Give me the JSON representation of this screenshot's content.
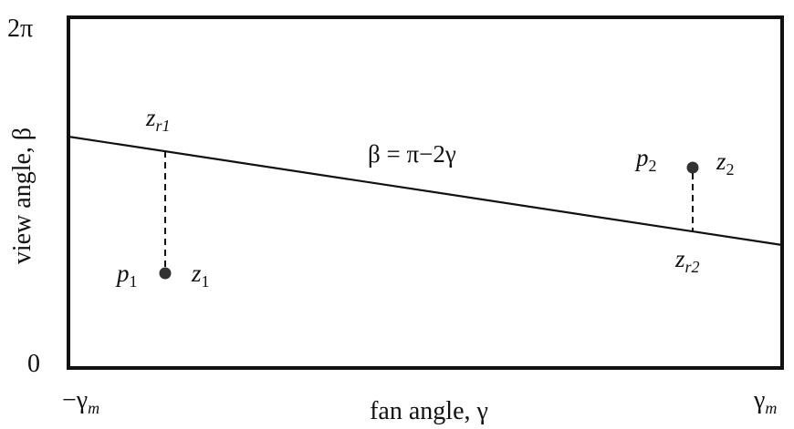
{
  "diagram": {
    "y_axis": {
      "label": "view angle, β",
      "top_tick": "2π",
      "bottom_tick": "0"
    },
    "x_axis": {
      "label": "fan angle, γ",
      "left_tick": {
        "main": "−γ",
        "sub": "m"
      },
      "right_tick": {
        "main": "γ",
        "sub": "m"
      }
    },
    "line_equation": "β = π−2γ",
    "points": [
      {
        "name": {
          "main": "p",
          "sub": "1"
        },
        "z": {
          "main": "z",
          "sub": "1"
        },
        "z_r": {
          "main": "z",
          "sub": "r1"
        }
      },
      {
        "name": {
          "main": "p",
          "sub": "2"
        },
        "z": {
          "main": "z",
          "sub": "2"
        },
        "z_r": {
          "main": "z",
          "sub": "r2"
        }
      }
    ],
    "colors": {
      "stroke": "#111111",
      "point": "#333333",
      "background": "#ffffff"
    }
  }
}
